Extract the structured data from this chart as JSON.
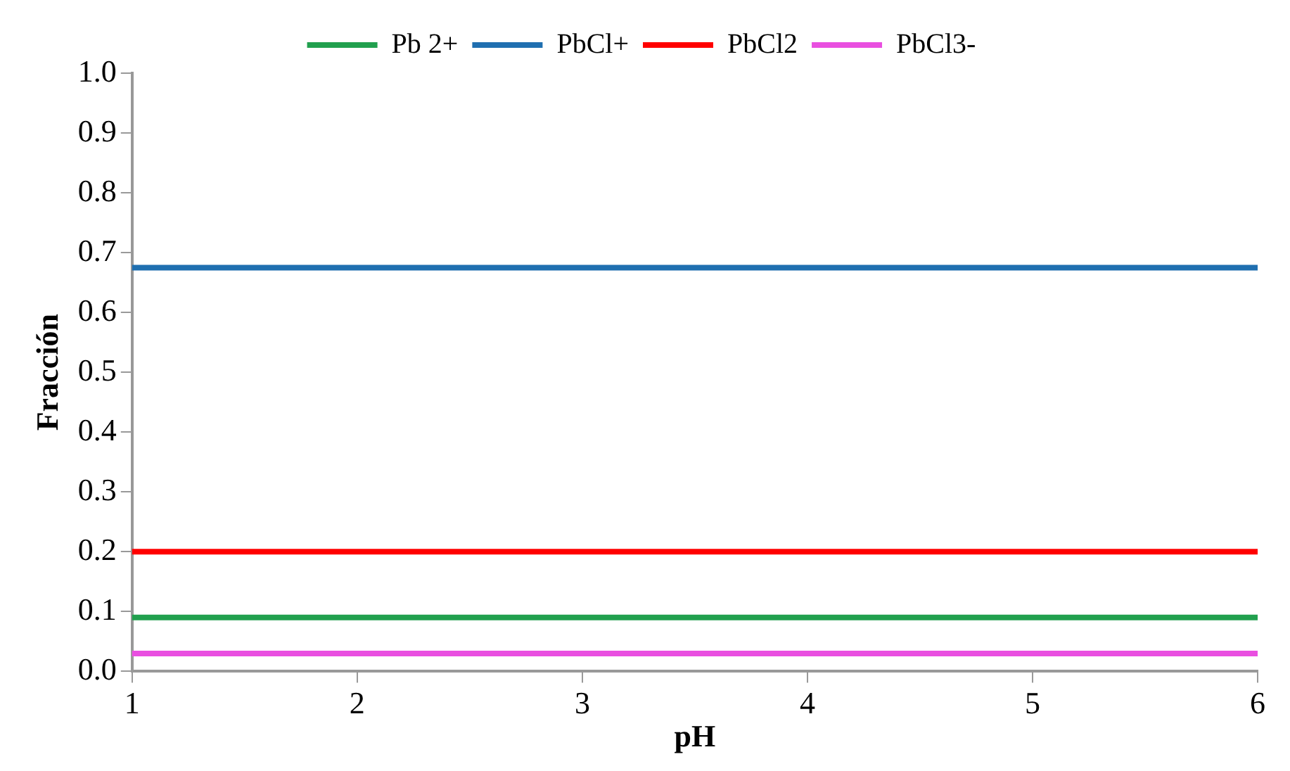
{
  "chart_data": {
    "type": "line",
    "xlabel": "pH",
    "ylabel": "Fracción",
    "x": [
      1,
      6
    ],
    "xlim": [
      1,
      6
    ],
    "xticks": [
      1,
      2,
      3,
      4,
      5,
      6
    ],
    "ylim": [
      0,
      1
    ],
    "yticks": [
      {
        "value": 0,
        "label": "0.0"
      },
      {
        "value": 0.1,
        "label": "0.1"
      },
      {
        "value": 0.2,
        "label": "0.2"
      },
      {
        "value": 0.3,
        "label": "0.3"
      },
      {
        "value": 0.4,
        "label": "0.4"
      },
      {
        "value": 0.5,
        "label": "0.5"
      },
      {
        "value": 0.6,
        "label": "0.6"
      },
      {
        "value": 0.7,
        "label": "0.7"
      },
      {
        "value": 0.8,
        "label": "0.8"
      },
      {
        "value": 0.9,
        "label": "0.9"
      },
      {
        "value": 1,
        "label": "1.0"
      }
    ],
    "grid": false,
    "legend": "top",
    "marker": "none",
    "line_style": "solid",
    "series": [
      {
        "name": "Pb 2+",
        "color": "#21a04e",
        "values": [
          0.09,
          0.09
        ]
      },
      {
        "name": "PbCl+",
        "color": "#1f6fb0",
        "values": [
          0.675,
          0.675
        ]
      },
      {
        "name": "PbCl2",
        "color": "#ff0000",
        "values": [
          0.2,
          0.2
        ]
      },
      {
        "name": "PbCl3-",
        "color": "#e94fe0",
        "values": [
          0.03,
          0.03
        ]
      }
    ]
  }
}
